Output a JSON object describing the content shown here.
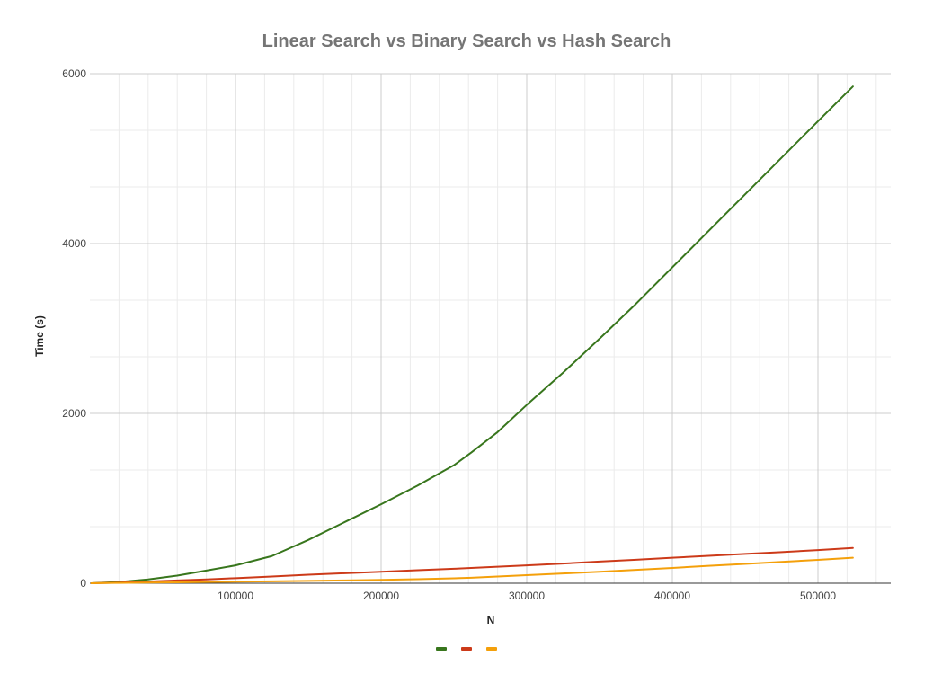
{
  "chart_data": {
    "type": "line",
    "title": "Linear Search vs Binary Search vs Hash Search",
    "xlabel": "N",
    "ylabel": "Time (s)",
    "xlim": [
      0,
      550000
    ],
    "ylim": [
      0,
      6000
    ],
    "x_ticks": [
      100000,
      200000,
      300000,
      400000,
      500000
    ],
    "y_ticks": [
      0,
      2000,
      4000,
      6000
    ],
    "x_tick_labels": [
      "100000",
      "200000",
      "300000",
      "400000",
      "500000"
    ],
    "y_tick_labels": [
      "0",
      "2000",
      "4000",
      "6000"
    ],
    "grid": true,
    "legend_position": "bottom",
    "series": [
      {
        "color": "#38761d",
        "x": [
          1000,
          20000,
          40000,
          60000,
          80000,
          100000,
          125000,
          150000,
          175000,
          200000,
          225000,
          250000,
          262000,
          280000,
          300000,
          325000,
          350000,
          375000,
          400000,
          425000,
          450000,
          475000,
          500000,
          524000
        ],
        "y": [
          0,
          15,
          45,
          90,
          150,
          210,
          320,
          510,
          720,
          930,
          1150,
          1390,
          1540,
          1780,
          2100,
          2480,
          2880,
          3290,
          3720,
          4150,
          4580,
          5010,
          5440,
          5850
        ]
      },
      {
        "color": "#cc3a19",
        "x": [
          1000,
          20000,
          40000,
          60000,
          80000,
          100000,
          125000,
          150000,
          175000,
          200000,
          225000,
          250000,
          275000,
          300000,
          325000,
          350000,
          375000,
          400000,
          425000,
          450000,
          475000,
          500000,
          524000
        ],
        "y": [
          0,
          8,
          20,
          33,
          45,
          60,
          80,
          100,
          118,
          135,
          153,
          170,
          190,
          210,
          232,
          255,
          277,
          300,
          323,
          345,
          367,
          390,
          415
        ]
      },
      {
        "color": "#f4a00b",
        "x": [
          1000,
          20000,
          40000,
          60000,
          80000,
          100000,
          125000,
          150000,
          175000,
          200000,
          225000,
          250000,
          262000,
          275000,
          300000,
          325000,
          350000,
          375000,
          400000,
          425000,
          450000,
          475000,
          500000,
          524000
        ],
        "y": [
          0,
          4,
          8,
          11,
          15,
          18,
          22,
          28,
          33,
          40,
          48,
          58,
          65,
          75,
          95,
          115,
          135,
          158,
          180,
          205,
          228,
          252,
          275,
          300
        ]
      }
    ]
  }
}
